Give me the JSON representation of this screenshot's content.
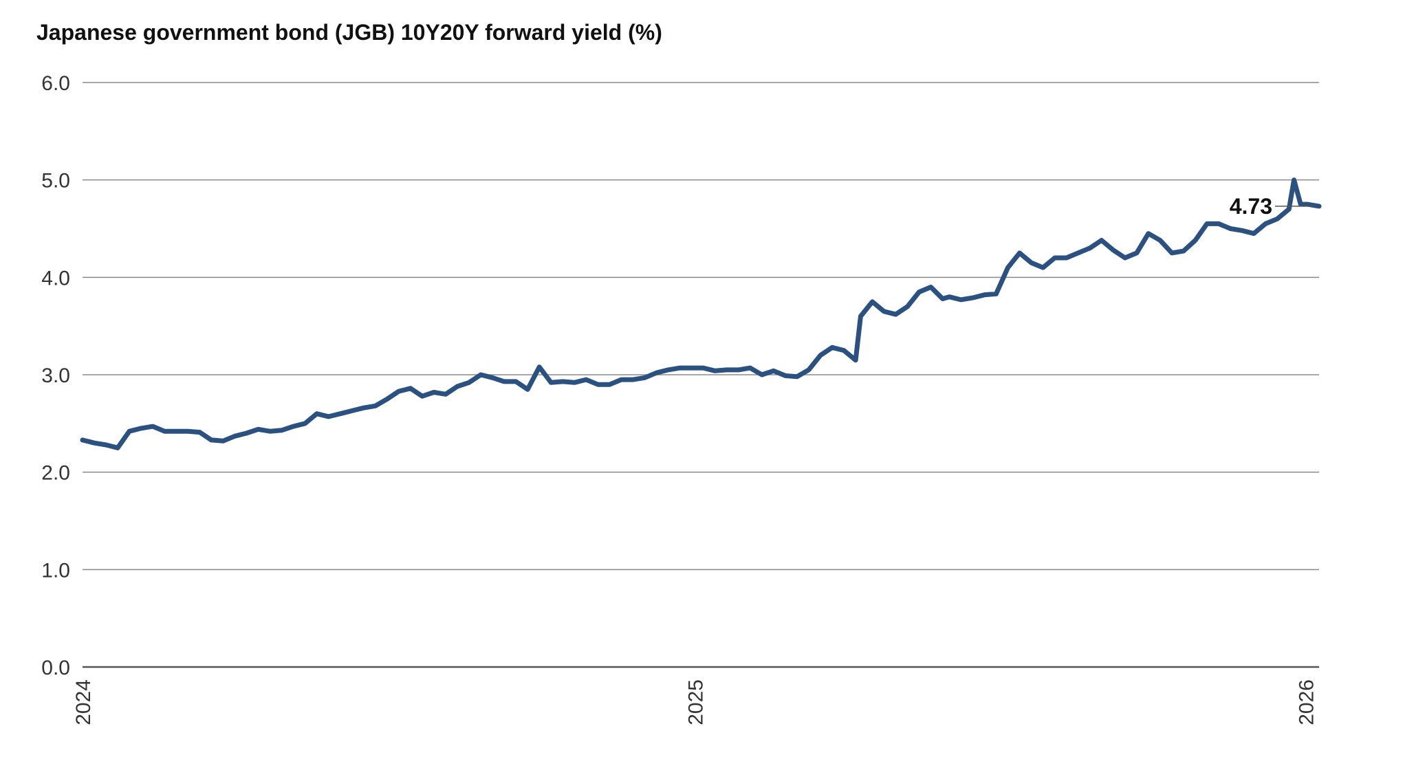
{
  "chart_data": {
    "type": "line",
    "title": "Japanese government bond (JGB) 10Y20Y forward yield (%)",
    "xlabel": "",
    "ylabel": "",
    "ylim": [
      0,
      6
    ],
    "yticks": [
      "6.0",
      "5.0",
      "4.0",
      "3.0",
      "2.0",
      "1.0",
      "0.0"
    ],
    "xlim": [
      "2024-01-01",
      "2026-01-09"
    ],
    "xticks": [
      {
        "label": "2024",
        "date": "2024-01-01"
      },
      {
        "label": "2025",
        "date": "2025-01-01"
      },
      {
        "label": "2026",
        "date": "2026-01-01"
      }
    ],
    "grid": true,
    "legend": "none",
    "colors": {
      "line": "#2b5180",
      "grid": "#8a8a8a",
      "text": "#111111"
    },
    "annotation": {
      "label": "4.73",
      "date": "2026-01-09",
      "value": 4.73
    },
    "series": [
      {
        "points": [
          [
            "2024-01-01",
            2.33
          ],
          [
            "2024-01-08",
            2.3
          ],
          [
            "2024-01-15",
            2.28
          ],
          [
            "2024-01-22",
            2.25
          ],
          [
            "2024-01-29",
            2.42
          ],
          [
            "2024-02-05",
            2.45
          ],
          [
            "2024-02-12",
            2.47
          ],
          [
            "2024-02-19",
            2.42
          ],
          [
            "2024-02-26",
            2.42
          ],
          [
            "2024-03-04",
            2.42
          ],
          [
            "2024-03-11",
            2.41
          ],
          [
            "2024-03-18",
            2.33
          ],
          [
            "2024-03-25",
            2.32
          ],
          [
            "2024-04-01",
            2.37
          ],
          [
            "2024-04-08",
            2.4
          ],
          [
            "2024-04-15",
            2.44
          ],
          [
            "2024-04-22",
            2.42
          ],
          [
            "2024-04-29",
            2.43
          ],
          [
            "2024-05-06",
            2.47
          ],
          [
            "2024-05-13",
            2.5
          ],
          [
            "2024-05-20",
            2.6
          ],
          [
            "2024-05-27",
            2.57
          ],
          [
            "2024-06-03",
            2.6
          ],
          [
            "2024-06-10",
            2.63
          ],
          [
            "2024-06-17",
            2.66
          ],
          [
            "2024-06-24",
            2.68
          ],
          [
            "2024-07-01",
            2.75
          ],
          [
            "2024-07-08",
            2.83
          ],
          [
            "2024-07-15",
            2.86
          ],
          [
            "2024-07-22",
            2.78
          ],
          [
            "2024-07-29",
            2.82
          ],
          [
            "2024-08-05",
            2.8
          ],
          [
            "2024-08-12",
            2.88
          ],
          [
            "2024-08-19",
            2.92
          ],
          [
            "2024-08-26",
            3.0
          ],
          [
            "2024-09-02",
            2.97
          ],
          [
            "2024-09-09",
            2.93
          ],
          [
            "2024-09-16",
            2.93
          ],
          [
            "2024-09-23",
            2.85
          ],
          [
            "2024-09-30",
            3.08
          ],
          [
            "2024-10-07",
            2.92
          ],
          [
            "2024-10-14",
            2.93
          ],
          [
            "2024-10-21",
            2.92
          ],
          [
            "2024-10-28",
            2.95
          ],
          [
            "2024-11-04",
            2.9
          ],
          [
            "2024-11-11",
            2.9
          ],
          [
            "2024-11-18",
            2.95
          ],
          [
            "2024-11-25",
            2.95
          ],
          [
            "2024-12-02",
            2.97
          ],
          [
            "2024-12-09",
            3.02
          ],
          [
            "2024-12-16",
            3.05
          ],
          [
            "2024-12-23",
            3.07
          ],
          [
            "2024-12-30",
            3.07
          ],
          [
            "2025-01-06",
            3.07
          ],
          [
            "2025-01-13",
            3.04
          ],
          [
            "2025-01-20",
            3.05
          ],
          [
            "2025-01-27",
            3.05
          ],
          [
            "2025-02-03",
            3.07
          ],
          [
            "2025-02-10",
            3.0
          ],
          [
            "2025-02-17",
            3.04
          ],
          [
            "2025-02-24",
            2.99
          ],
          [
            "2025-03-03",
            2.98
          ],
          [
            "2025-03-10",
            3.05
          ],
          [
            "2025-03-17",
            3.2
          ],
          [
            "2025-03-24",
            3.28
          ],
          [
            "2025-03-31",
            3.25
          ],
          [
            "2025-04-07",
            3.15
          ],
          [
            "2025-04-10",
            3.6
          ],
          [
            "2025-04-17",
            3.75
          ],
          [
            "2025-04-24",
            3.65
          ],
          [
            "2025-05-01",
            3.62
          ],
          [
            "2025-05-08",
            3.7
          ],
          [
            "2025-05-15",
            3.85
          ],
          [
            "2025-05-22",
            3.9
          ],
          [
            "2025-05-29",
            3.78
          ],
          [
            "2025-06-02",
            3.8
          ],
          [
            "2025-06-09",
            3.77
          ],
          [
            "2025-06-16",
            3.79
          ],
          [
            "2025-06-23",
            3.82
          ],
          [
            "2025-06-30",
            3.83
          ],
          [
            "2025-07-07",
            4.1
          ],
          [
            "2025-07-14",
            4.25
          ],
          [
            "2025-07-21",
            4.15
          ],
          [
            "2025-07-28",
            4.1
          ],
          [
            "2025-08-04",
            4.2
          ],
          [
            "2025-08-11",
            4.2
          ],
          [
            "2025-08-18",
            4.25
          ],
          [
            "2025-08-25",
            4.3
          ],
          [
            "2025-09-01",
            4.38
          ],
          [
            "2025-09-08",
            4.28
          ],
          [
            "2025-09-15",
            4.2
          ],
          [
            "2025-09-22",
            4.25
          ],
          [
            "2025-09-29",
            4.45
          ],
          [
            "2025-10-06",
            4.38
          ],
          [
            "2025-10-13",
            4.25
          ],
          [
            "2025-10-20",
            4.27
          ],
          [
            "2025-10-27",
            4.38
          ],
          [
            "2025-11-03",
            4.55
          ],
          [
            "2025-11-10",
            4.55
          ],
          [
            "2025-11-17",
            4.5
          ],
          [
            "2025-11-24",
            4.48
          ],
          [
            "2025-12-01",
            4.45
          ],
          [
            "2025-12-08",
            4.55
          ],
          [
            "2025-12-15",
            4.6
          ],
          [
            "2025-12-22",
            4.7
          ],
          [
            "2025-12-25",
            5.0
          ],
          [
            "2025-12-29",
            4.75
          ],
          [
            "2026-01-02",
            4.75
          ],
          [
            "2026-01-09",
            4.73
          ]
        ]
      }
    ]
  }
}
